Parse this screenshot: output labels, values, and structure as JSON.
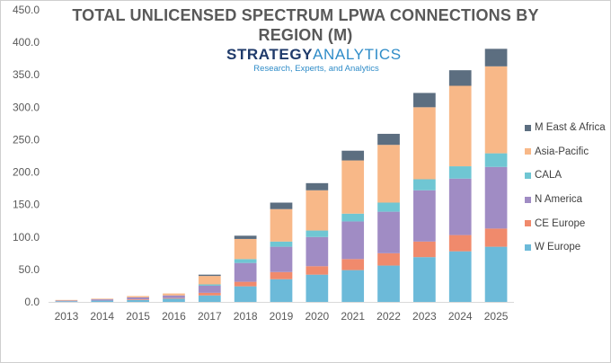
{
  "chart_data": {
    "type": "bar",
    "stacked": true,
    "title": "TOTAL UNLICENSED SPECTRUM LPWA CONNECTIONS BY REGION (M)",
    "logo": {
      "name_part1": "STRATEGY",
      "name_part2": "ANALYTICS",
      "tagline": "Research, Experts, and Analytics"
    },
    "categories": [
      "2013",
      "2014",
      "2015",
      "2016",
      "2017",
      "2018",
      "2019",
      "2020",
      "2021",
      "2022",
      "2023",
      "2024",
      "2025"
    ],
    "ylim": [
      0,
      450
    ],
    "yticks": [
      "0.0",
      "50.0",
      "100.0",
      "150.0",
      "200.0",
      "250.0",
      "300.0",
      "350.0",
      "400.0",
      "450.0"
    ],
    "grid": false,
    "legend_position": "right",
    "series": [
      {
        "name": "W Europe",
        "color": "#6cbad9",
        "values": [
          1,
          2,
          3,
          5,
          10,
          24,
          35,
          42,
          49,
          56,
          69,
          78,
          85
        ]
      },
      {
        "name": "CE Europe",
        "color": "#f08a6c",
        "values": [
          0,
          0,
          1,
          1,
          4,
          7,
          11,
          13,
          17,
          19,
          24,
          25,
          28
        ]
      },
      {
        "name": "N America",
        "color": "#a08cc4",
        "values": [
          1,
          2,
          3,
          4,
          11,
          29,
          39,
          45,
          58,
          64,
          79,
          87,
          95
        ]
      },
      {
        "name": "CALA",
        "color": "#6fc6d3",
        "values": [
          0,
          0,
          0,
          0,
          2,
          6,
          8,
          10,
          12,
          14,
          17,
          19,
          21
        ]
      },
      {
        "name": "Asia-Pacific",
        "color": "#f8b888",
        "values": [
          1,
          1,
          2,
          3,
          13,
          31,
          50,
          62,
          82,
          89,
          111,
          124,
          134
        ]
      },
      {
        "name": "M East & Africa",
        "color": "#5c6e80",
        "values": [
          0,
          0,
          0,
          0,
          2,
          5,
          10,
          11,
          15,
          17,
          22,
          24,
          27
        ]
      }
    ]
  }
}
